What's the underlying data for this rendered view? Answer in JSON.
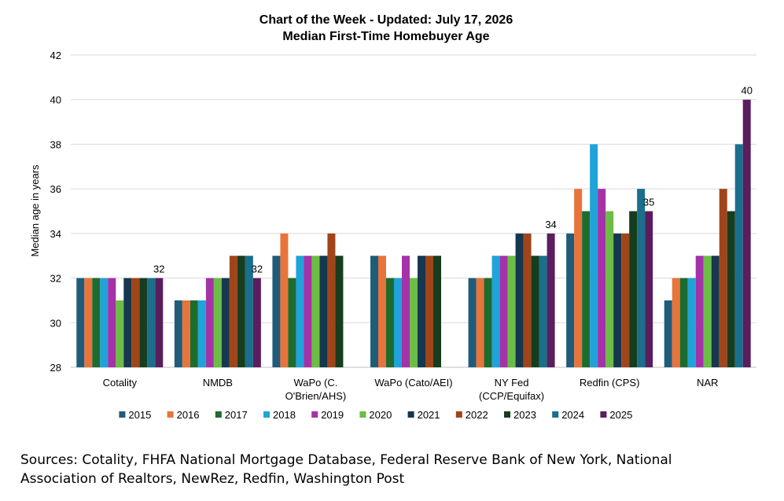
{
  "chart_data": {
    "type": "bar",
    "title": "Chart of the Week - Updated: July 17, 2026",
    "subtitle": "Median First-Time Homebuyer Age",
    "ylabel": "Median age in years",
    "xlabel": "",
    "ylim": [
      28,
      42
    ],
    "yticks": [
      28,
      30,
      32,
      34,
      36,
      38,
      40,
      42
    ],
    "grid": true,
    "legend_position": "bottom",
    "categories": [
      [
        "Cotality"
      ],
      [
        "NMDB"
      ],
      [
        "WaPo (C.",
        "O'Brien/AHS)"
      ],
      [
        "WaPo (Cato/AEI)"
      ],
      [
        "NY Fed",
        "(CCP/Equifax)"
      ],
      [
        "Redfin (CPS)"
      ],
      [
        "NAR"
      ]
    ],
    "series": [
      {
        "name": "2015",
        "color": "#1f5c7a",
        "values": [
          32,
          31,
          33,
          33,
          32,
          34,
          31
        ]
      },
      {
        "name": "2016",
        "color": "#e8743b",
        "values": [
          32,
          31,
          34,
          33,
          32,
          36,
          32
        ]
      },
      {
        "name": "2017",
        "color": "#1e6b2e",
        "values": [
          32,
          31,
          32,
          32,
          32,
          35,
          32
        ]
      },
      {
        "name": "2018",
        "color": "#1fa3d9",
        "values": [
          32,
          31,
          33,
          32,
          33,
          38,
          32
        ]
      },
      {
        "name": "2019",
        "color": "#a532a8",
        "values": [
          32,
          32,
          33,
          33,
          33,
          36,
          33
        ]
      },
      {
        "name": "2020",
        "color": "#6cbd45",
        "values": [
          31,
          32,
          33,
          32,
          33,
          35,
          33
        ]
      },
      {
        "name": "2021",
        "color": "#16374f",
        "values": [
          32,
          32,
          33,
          33,
          34,
          34,
          33
        ]
      },
      {
        "name": "2022",
        "color": "#a0451a",
        "values": [
          32,
          33,
          34,
          33,
          34,
          34,
          36
        ]
      },
      {
        "name": "2023",
        "color": "#163d1e",
        "values": [
          32,
          33,
          33,
          33,
          33,
          35,
          35
        ]
      },
      {
        "name": "2024",
        "color": "#1a6f8c",
        "values": [
          32,
          33,
          null,
          null,
          33,
          36,
          38
        ]
      },
      {
        "name": "2025",
        "color": "#5a1d5e",
        "values": [
          32,
          32,
          null,
          null,
          34,
          35,
          40
        ]
      }
    ],
    "data_labels": [
      {
        "category_index": 0,
        "series_index": 10,
        "text": "32"
      },
      {
        "category_index": 1,
        "series_index": 10,
        "text": "32"
      },
      {
        "category_index": 4,
        "series_index": 10,
        "text": "34"
      },
      {
        "category_index": 5,
        "series_index": 10,
        "text": "35"
      },
      {
        "category_index": 6,
        "series_index": 10,
        "text": "40"
      }
    ]
  },
  "sources": {
    "line1": "Sources: Cotality, FHFA National Mortgage Database, Federal Reserve Bank of New York, National",
    "line2": "Association of Realtors, NewRez, Redfin, Washington Post"
  }
}
